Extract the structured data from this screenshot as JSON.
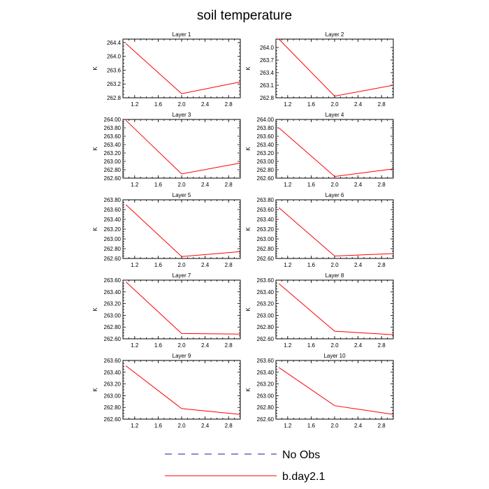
{
  "figure_title": "soil temperature",
  "colors": {
    "model_line": "#ff0000",
    "obs_line": "#1a1aa6"
  },
  "legend": [
    {
      "label": "No Obs",
      "style": "dashed"
    },
    {
      "label": "b.day2.1",
      "style": "solid"
    }
  ],
  "chart_data": [
    {
      "type": "line",
      "title": "Layer 1",
      "ylabel": "K",
      "xlim": [
        1.0,
        3.0
      ],
      "xticks": [
        1.2,
        1.6,
        2.0,
        2.4,
        2.8
      ],
      "xtick_labels": [
        "1.2",
        "1.6",
        "2.0",
        "2.4",
        "2.8"
      ],
      "ylim": [
        262.8,
        264.5
      ],
      "yticks": [
        262.8,
        263.2,
        263.6,
        264.0,
        264.4
      ],
      "ytick_labels": [
        "262.8",
        "263.2",
        "263.6",
        "264.0",
        "264.4"
      ],
      "series": [
        {
          "name": "b.day2.1",
          "x": [
            1.05,
            2.0,
            3.0
          ],
          "y": [
            264.37,
            262.92,
            263.26
          ]
        }
      ]
    },
    {
      "type": "line",
      "title": "Layer 2",
      "ylabel": "K",
      "xlim": [
        1.0,
        3.0
      ],
      "xticks": [
        1.2,
        1.6,
        2.0,
        2.4,
        2.8
      ],
      "xtick_labels": [
        "1.2",
        "1.6",
        "2.0",
        "2.4",
        "2.8"
      ],
      "ylim": [
        262.8,
        264.2
      ],
      "yticks": [
        262.8,
        263.1,
        263.4,
        263.7,
        264.0
      ],
      "ytick_labels": [
        "262.8",
        "263.1",
        "263.4",
        "263.7",
        "264.0"
      ],
      "series": [
        {
          "name": "b.day2.1",
          "x": [
            1.05,
            2.0,
            3.0
          ],
          "y": [
            264.2,
            262.84,
            263.1
          ]
        }
      ]
    },
    {
      "type": "line",
      "title": "Layer 3",
      "ylabel": "K",
      "xlim": [
        1.0,
        3.0
      ],
      "xticks": [
        1.2,
        1.6,
        2.0,
        2.4,
        2.8
      ],
      "xtick_labels": [
        "1.2",
        "1.6",
        "2.0",
        "2.4",
        "2.8"
      ],
      "ylim": [
        262.6,
        264.0
      ],
      "yticks": [
        262.6,
        262.8,
        263.0,
        263.2,
        263.4,
        263.6,
        263.8,
        264.0
      ],
      "ytick_labels": [
        "262.60",
        "262.80",
        "263.00",
        "263.20",
        "263.40",
        "263.60",
        "263.80",
        "264.00"
      ],
      "series": [
        {
          "name": "b.day2.1",
          "x": [
            1.05,
            2.0,
            3.0
          ],
          "y": [
            263.98,
            262.7,
            262.96
          ]
        }
      ]
    },
    {
      "type": "line",
      "title": "Layer 4",
      "ylabel": "K",
      "xlim": [
        1.0,
        3.0
      ],
      "xticks": [
        1.2,
        1.6,
        2.0,
        2.4,
        2.8
      ],
      "xtick_labels": [
        "1.2",
        "1.6",
        "2.0",
        "2.4",
        "2.8"
      ],
      "ylim": [
        262.6,
        264.0
      ],
      "yticks": [
        262.6,
        262.8,
        263.0,
        263.2,
        263.4,
        263.6,
        263.8,
        264.0
      ],
      "ytick_labels": [
        "262.60",
        "262.80",
        "263.00",
        "263.20",
        "263.40",
        "263.60",
        "263.80",
        "264.00"
      ],
      "series": [
        {
          "name": "b.day2.1",
          "x": [
            1.05,
            2.0,
            3.0
          ],
          "y": [
            263.8,
            262.64,
            262.82
          ]
        }
      ]
    },
    {
      "type": "line",
      "title": "Layer 5",
      "ylabel": "K",
      "xlim": [
        1.0,
        3.0
      ],
      "xticks": [
        1.2,
        1.6,
        2.0,
        2.4,
        2.8
      ],
      "xtick_labels": [
        "1.2",
        "1.6",
        "2.0",
        "2.4",
        "2.8"
      ],
      "ylim": [
        262.6,
        263.8
      ],
      "yticks": [
        262.6,
        262.8,
        263.0,
        263.2,
        263.4,
        263.6,
        263.8
      ],
      "ytick_labels": [
        "262.60",
        "262.80",
        "263.00",
        "263.20",
        "263.40",
        "263.60",
        "263.80"
      ],
      "series": [
        {
          "name": "b.day2.1",
          "x": [
            1.05,
            2.0,
            3.0
          ],
          "y": [
            263.7,
            262.64,
            262.74
          ]
        }
      ]
    },
    {
      "type": "line",
      "title": "Layer 6",
      "ylabel": "K",
      "xlim": [
        1.0,
        3.0
      ],
      "xticks": [
        1.2,
        1.6,
        2.0,
        2.4,
        2.8
      ],
      "xtick_labels": [
        "1.2",
        "1.6",
        "2.0",
        "2.4",
        "2.8"
      ],
      "ylim": [
        262.6,
        263.8
      ],
      "yticks": [
        262.6,
        262.8,
        263.0,
        263.2,
        263.4,
        263.6,
        263.8
      ],
      "ytick_labels": [
        "262.60",
        "262.80",
        "263.00",
        "263.20",
        "263.40",
        "263.60",
        "263.80"
      ],
      "series": [
        {
          "name": "b.day2.1",
          "x": [
            1.05,
            2.0,
            3.0
          ],
          "y": [
            263.64,
            262.65,
            262.7
          ]
        }
      ]
    },
    {
      "type": "line",
      "title": "Layer 7",
      "ylabel": "K",
      "xlim": [
        1.0,
        3.0
      ],
      "xticks": [
        1.2,
        1.6,
        2.0,
        2.4,
        2.8
      ],
      "xtick_labels": [
        "1.2",
        "1.6",
        "2.0",
        "2.4",
        "2.8"
      ],
      "ylim": [
        262.6,
        263.6
      ],
      "yticks": [
        262.6,
        262.8,
        263.0,
        263.2,
        263.4,
        263.6
      ],
      "ytick_labels": [
        "262.60",
        "262.80",
        "263.00",
        "263.20",
        "263.40",
        "263.60"
      ],
      "series": [
        {
          "name": "b.day2.1",
          "x": [
            1.05,
            2.0,
            3.0
          ],
          "y": [
            263.57,
            262.69,
            262.68
          ]
        }
      ]
    },
    {
      "type": "line",
      "title": "Layer 8",
      "ylabel": "K",
      "xlim": [
        1.0,
        3.0
      ],
      "xticks": [
        1.2,
        1.6,
        2.0,
        2.4,
        2.8
      ],
      "xtick_labels": [
        "1.2",
        "1.6",
        "2.0",
        "2.4",
        "2.8"
      ],
      "ylim": [
        262.6,
        263.6
      ],
      "yticks": [
        262.6,
        262.8,
        263.0,
        263.2,
        263.4,
        263.6
      ],
      "ytick_labels": [
        "262.60",
        "262.80",
        "263.00",
        "263.20",
        "263.40",
        "263.60"
      ],
      "series": [
        {
          "name": "b.day2.1",
          "x": [
            1.05,
            2.0,
            3.0
          ],
          "y": [
            263.54,
            262.73,
            262.67
          ]
        }
      ]
    },
    {
      "type": "line",
      "title": "Layer 9",
      "ylabel": "K",
      "xlim": [
        1.0,
        3.0
      ],
      "xticks": [
        1.2,
        1.6,
        2.0,
        2.4,
        2.8
      ],
      "xtick_labels": [
        "1.2",
        "1.6",
        "2.0",
        "2.4",
        "2.8"
      ],
      "ylim": [
        262.6,
        263.6
      ],
      "yticks": [
        262.6,
        262.8,
        263.0,
        263.2,
        263.4,
        263.6
      ],
      "ytick_labels": [
        "262.60",
        "262.80",
        "263.00",
        "263.20",
        "263.40",
        "263.60"
      ],
      "series": [
        {
          "name": "b.day2.1",
          "x": [
            1.05,
            2.0,
            3.0
          ],
          "y": [
            263.51,
            262.78,
            262.68
          ]
        }
      ]
    },
    {
      "type": "line",
      "title": "Layer 10",
      "ylabel": "K",
      "xlim": [
        1.0,
        3.0
      ],
      "xticks": [
        1.2,
        1.6,
        2.0,
        2.4,
        2.8
      ],
      "xtick_labels": [
        "1.2",
        "1.6",
        "2.0",
        "2.4",
        "2.8"
      ],
      "ylim": [
        262.6,
        263.6
      ],
      "yticks": [
        262.6,
        262.8,
        263.0,
        263.2,
        263.4,
        263.6
      ],
      "ytick_labels": [
        "262.60",
        "262.80",
        "263.00",
        "263.20",
        "263.40",
        "263.60"
      ],
      "series": [
        {
          "name": "b.day2.1",
          "x": [
            1.05,
            2.0,
            3.0
          ],
          "y": [
            263.48,
            262.83,
            262.68
          ]
        }
      ]
    }
  ]
}
